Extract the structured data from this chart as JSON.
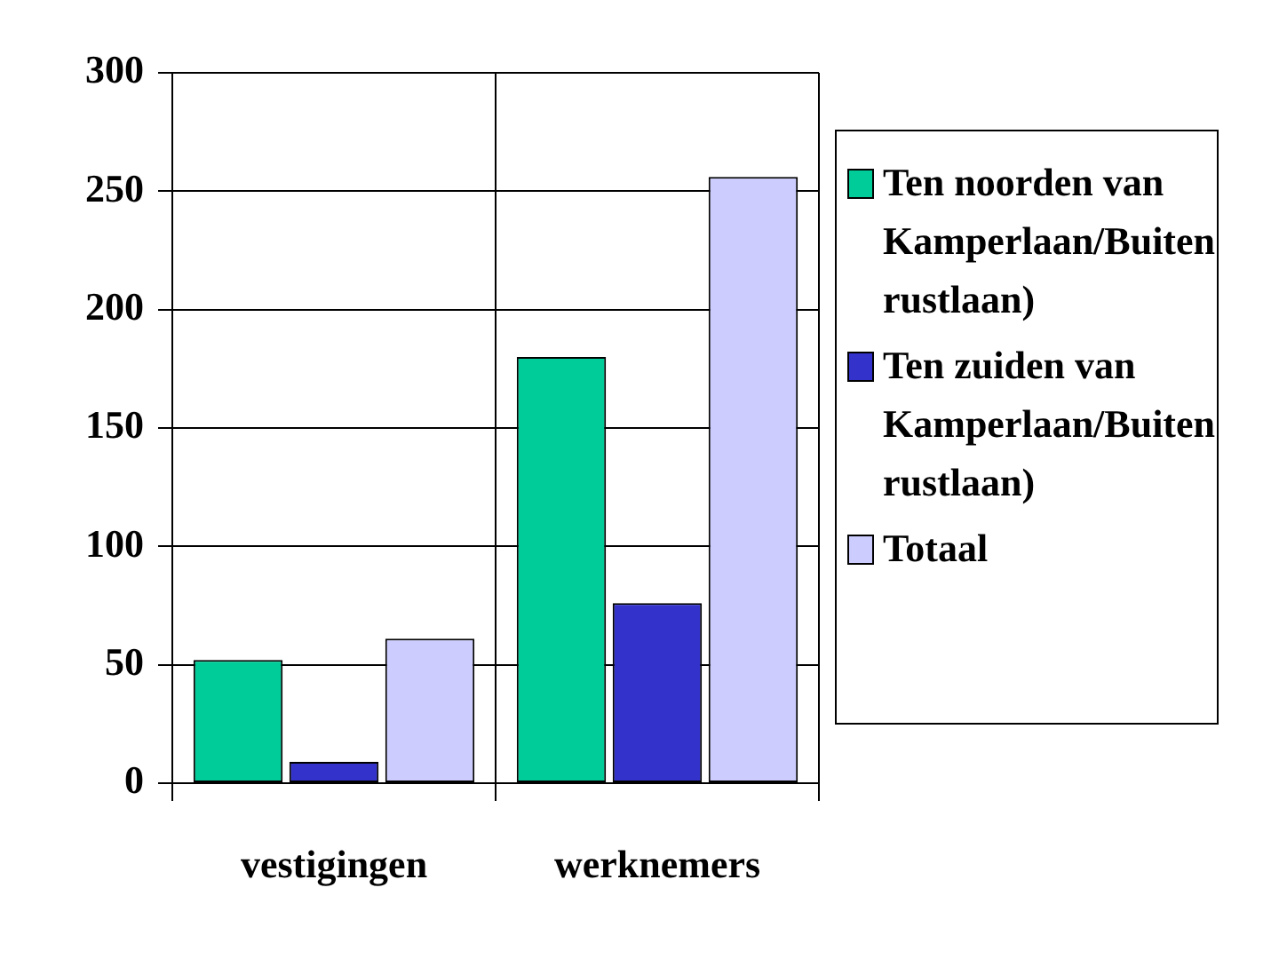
{
  "chart_data": {
    "type": "bar",
    "categories": [
      "vestigingen",
      "werknemers"
    ],
    "series": [
      {
        "name": "Ten noorden van Kamperlaan/Buiten rustlaan)",
        "color": "#00cc99",
        "values": [
          52,
          180
        ]
      },
      {
        "name": "Ten zuiden van Kamperlaan/Buiten rustlaan)",
        "color": "#3333cc",
        "values": [
          9,
          76
        ]
      },
      {
        "name": "Totaal",
        "color": "#ccccff",
        "values": [
          61,
          256
        ]
      }
    ],
    "ylim": [
      0,
      300
    ],
    "yticks": [
      0,
      50,
      100,
      150,
      200,
      250,
      300
    ],
    "grid": true,
    "legend": "right"
  }
}
